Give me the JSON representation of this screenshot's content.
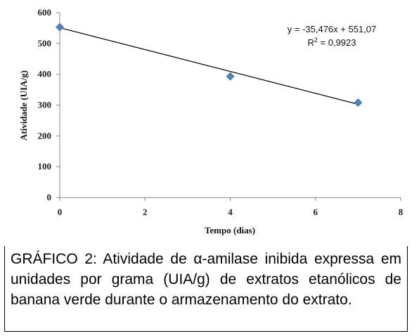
{
  "chart_data": {
    "type": "scatter",
    "xlabel": "Tempo (dias)",
    "ylabel": "Atividade (UIA/g)",
    "xlim": [
      0,
      8
    ],
    "ylim": [
      0,
      600
    ],
    "xticks": [
      "0",
      "2",
      "4",
      "6",
      "8"
    ],
    "yticks": [
      "0",
      "100",
      "200",
      "300",
      "400",
      "500",
      "600"
    ],
    "points": [
      {
        "x": 0,
        "y": 553
      },
      {
        "x": 4,
        "y": 393
      },
      {
        "x": 7,
        "y": 308
      }
    ],
    "trendline": {
      "slope": -35.476,
      "intercept": 551.07
    },
    "equation": "y = -35,476x + 551,07",
    "r2_label": "R",
    "r2_exp": "2",
    "r2_value": " = 0,9923",
    "marker_color": "#4f81bd",
    "line_color": "#000000",
    "grid": false,
    "legend": "none"
  },
  "caption": "GRÁFICO 2: Atividade de α-amilase inibida expressa em unidades por grama (UIA/g) de extratos etanólicos de banana verde durante o armazenamento do extrato."
}
